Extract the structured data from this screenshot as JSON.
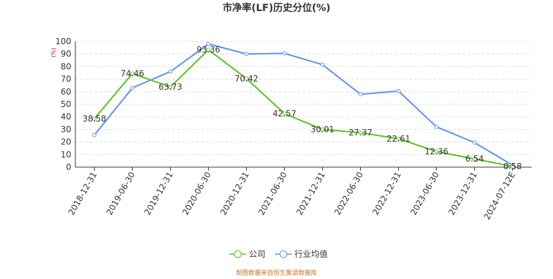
{
  "chart_data": {
    "type": "line",
    "title": "市净率(LF)历史分位(%)",
    "y_label": "(%)",
    "categories": [
      "2018-12-31",
      "2019-06-30",
      "2019-12-31",
      "2020-06-30",
      "2020-12-31",
      "2021-06-30",
      "2021-12-31",
      "2022-06-30",
      "2022-12-31",
      "2023-06-30",
      "2023-12-31",
      "2024-07-12E"
    ],
    "series": [
      {
        "name": "公司",
        "color": "#52c41a",
        "values": [
          38.58,
          74.46,
          63.73,
          93.36,
          70.42,
          42.57,
          30.01,
          27.37,
          22.61,
          12.36,
          6.54,
          0.58
        ],
        "show_labels": true
      },
      {
        "name": "行业均值",
        "color": "#5b8ff9",
        "values": [
          25.5,
          63,
          76,
          98,
          90,
          90.5,
          81.5,
          58,
          60.5,
          32,
          19.5,
          1.5
        ],
        "show_labels": false
      }
    ],
    "ylim": [
      0,
      100
    ],
    "yticks": [
      0,
      10,
      20,
      30,
      40,
      50,
      60,
      70,
      80,
      90,
      100
    ],
    "grid": true,
    "source": "制图数据来自恒生聚源数据库"
  }
}
